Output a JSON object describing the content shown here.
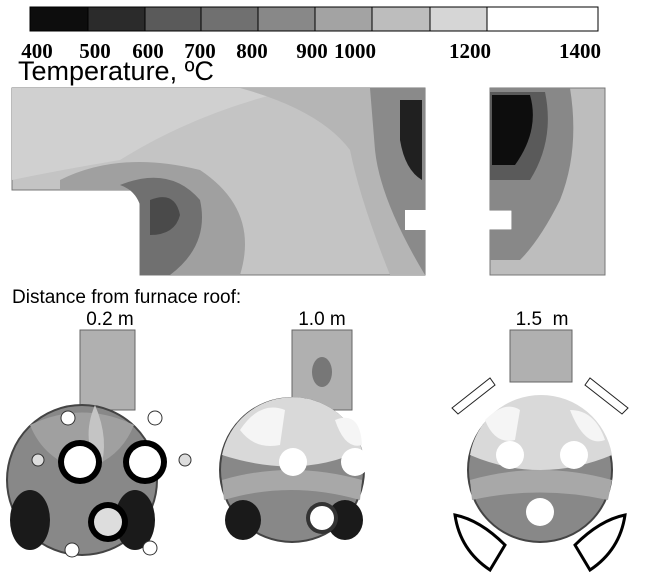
{
  "colorbar": {
    "swatches": [
      "#0d0d0d",
      "#2b2b2b",
      "#5a5a5a",
      "#707070",
      "#888888",
      "#a3a3a3",
      "#bdbdbd",
      "#d6d6d6",
      "#ffffff"
    ],
    "labels": [
      "400",
      "500",
      "600",
      "700",
      "800",
      "900",
      "1000",
      "1200",
      "1400"
    ]
  },
  "title": "Temperature, ºC",
  "section_label": "Distance from furnace roof:",
  "sections": [
    "0.2 m",
    "1.0 m",
    "1.5  m"
  ]
}
